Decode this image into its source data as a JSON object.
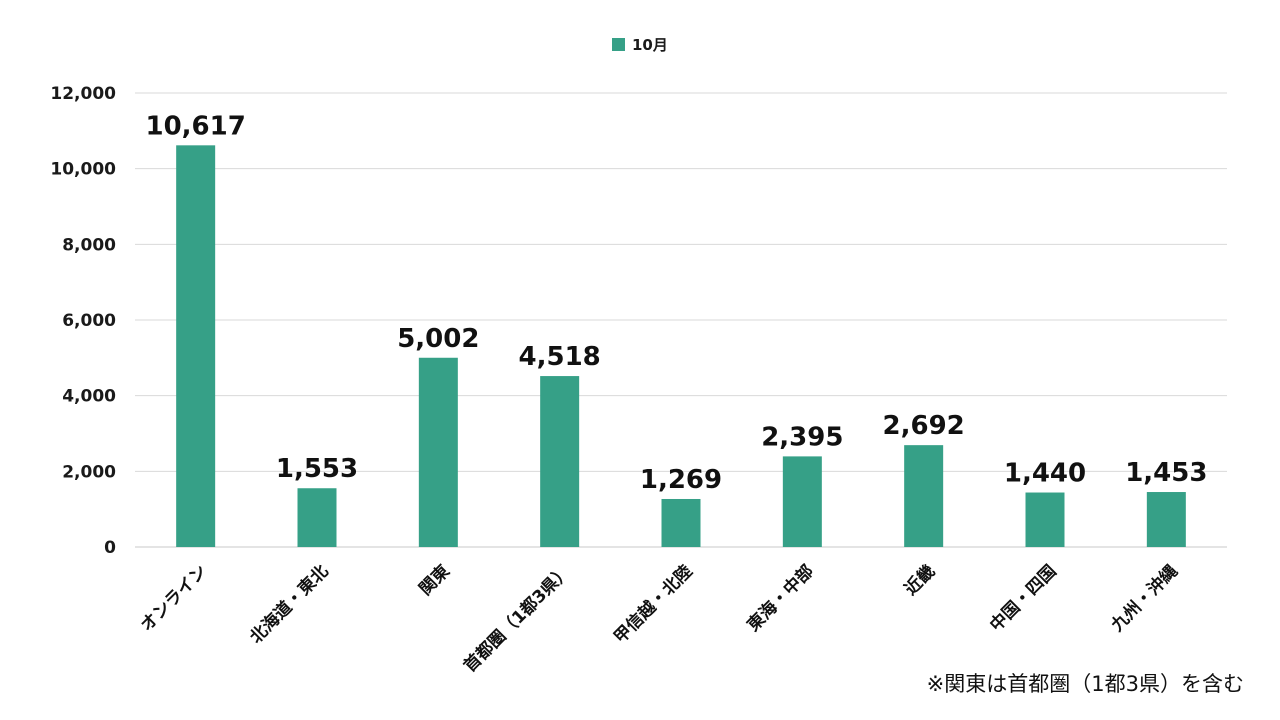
{
  "chart_data": {
    "type": "bar",
    "categories": [
      "オンライン",
      "北海道・東北",
      "関東",
      "首都圏（1都3県）",
      "甲信越・北陸",
      "東海・中部",
      "近畿",
      "中国・四国",
      "九州・沖縄"
    ],
    "series": [
      {
        "name": "10月",
        "values": [
          10617,
          1553,
          5002,
          4518,
          1269,
          2395,
          2692,
          1440,
          1453
        ],
        "color": "#36a087"
      }
    ],
    "data_labels": [
      "10,617",
      "1,553",
      "5,002",
      "4,518",
      "1,269",
      "2,395",
      "2,692",
      "1,440",
      "1,453"
    ],
    "y_ticks": [
      "0",
      "2,000",
      "4,000",
      "6,000",
      "8,000",
      "10,000",
      "12,000"
    ],
    "y_tick_values": [
      0,
      2000,
      4000,
      6000,
      8000,
      10000,
      12000
    ],
    "ylim": [
      0,
      12000
    ],
    "grid": true,
    "legend_position": "top-center",
    "title": "",
    "xlabel": "",
    "ylabel": ""
  },
  "footnote": "※関東は首都圏（1都3県）を含む"
}
